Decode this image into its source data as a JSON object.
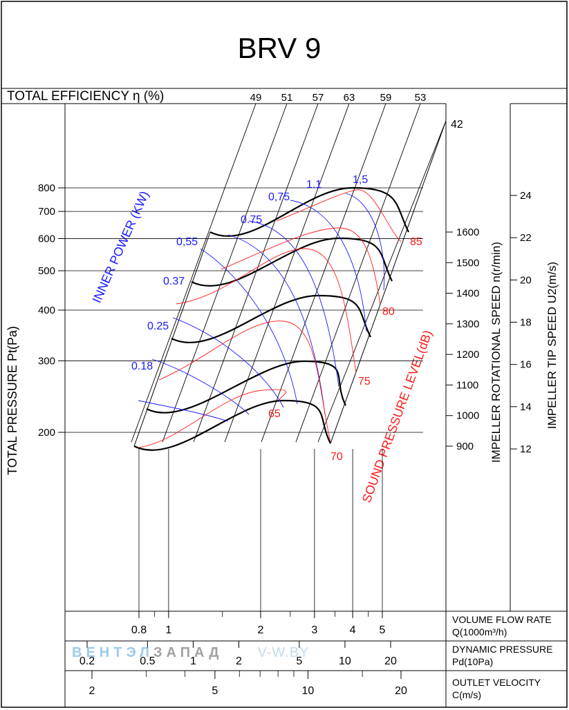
{
  "title": "BRV 9",
  "chart_data": {
    "type": "fan-performance-nomogram",
    "title": "BRV 9",
    "efficiency": {
      "label": "TOTAL EFFICIENCY η (%)",
      "values": [
        "49",
        "51",
        "57",
        "63",
        "59",
        "53"
      ],
      "extra": "42"
    },
    "ylabel": "TOTAL PRESSURE Pt(Pa)",
    "pressure_ticks": [
      200,
      300,
      400,
      500,
      600,
      700,
      800
    ],
    "ylim": [
      120,
      1000
    ],
    "speed": {
      "label": "IMPELLER ROTATIONAL SPEED n(r/min)",
      "ticks": [
        900,
        1000,
        1100,
        1200,
        1300,
        1400,
        1500,
        1600
      ]
    },
    "tip_speed": {
      "label": "IMPELLER TIP SPEED U2(m/s)",
      "ticks": [
        12,
        14,
        16,
        18,
        20,
        22,
        24
      ]
    },
    "power": {
      "label": "INNER POWER (KW)",
      "values": [
        "0.18",
        "0.25",
        "0.37",
        "0,55",
        "0.75",
        "0,75",
        "1.1",
        "1,5"
      ]
    },
    "sound": {
      "label": "SOUND PRESSURE LEVEL(dB)",
      "values": [
        "65",
        "70",
        "75",
        "80",
        "85"
      ]
    },
    "flow": {
      "label1": "VOLUME FLOW RATE",
      "label2": "Q(1000m³/h)",
      "ticks": [
        "0.8",
        "1",
        "2",
        "3",
        "4",
        "5"
      ],
      "range": [
        0.8,
        5
      ]
    },
    "dynamic": {
      "label1": "DYNAMIC PRESSURE",
      "label2": "Pd(10Pa)",
      "ticks": [
        "0.2",
        "0.5",
        "1",
        "2",
        "5",
        "10",
        "20"
      ]
    },
    "velocity": {
      "label1": "OUTLET VELOCITY",
      "label2": "C(m/s)",
      "ticks": [
        "2",
        "5",
        "10",
        "20"
      ]
    },
    "curves": [
      {
        "speed": 900,
        "pmax": 300
      },
      {
        "speed": 1000,
        "pmax": 380
      },
      {
        "speed": 1200,
        "pmax": 440
      },
      {
        "speed": 1400,
        "pmax": 580
      },
      {
        "speed": 1600,
        "pmax": 800
      }
    ]
  },
  "watermark": {
    "part1": "ВЕНТЭЛ",
    "part2": "ЗАПАД",
    "part3": "V-W.BY"
  }
}
